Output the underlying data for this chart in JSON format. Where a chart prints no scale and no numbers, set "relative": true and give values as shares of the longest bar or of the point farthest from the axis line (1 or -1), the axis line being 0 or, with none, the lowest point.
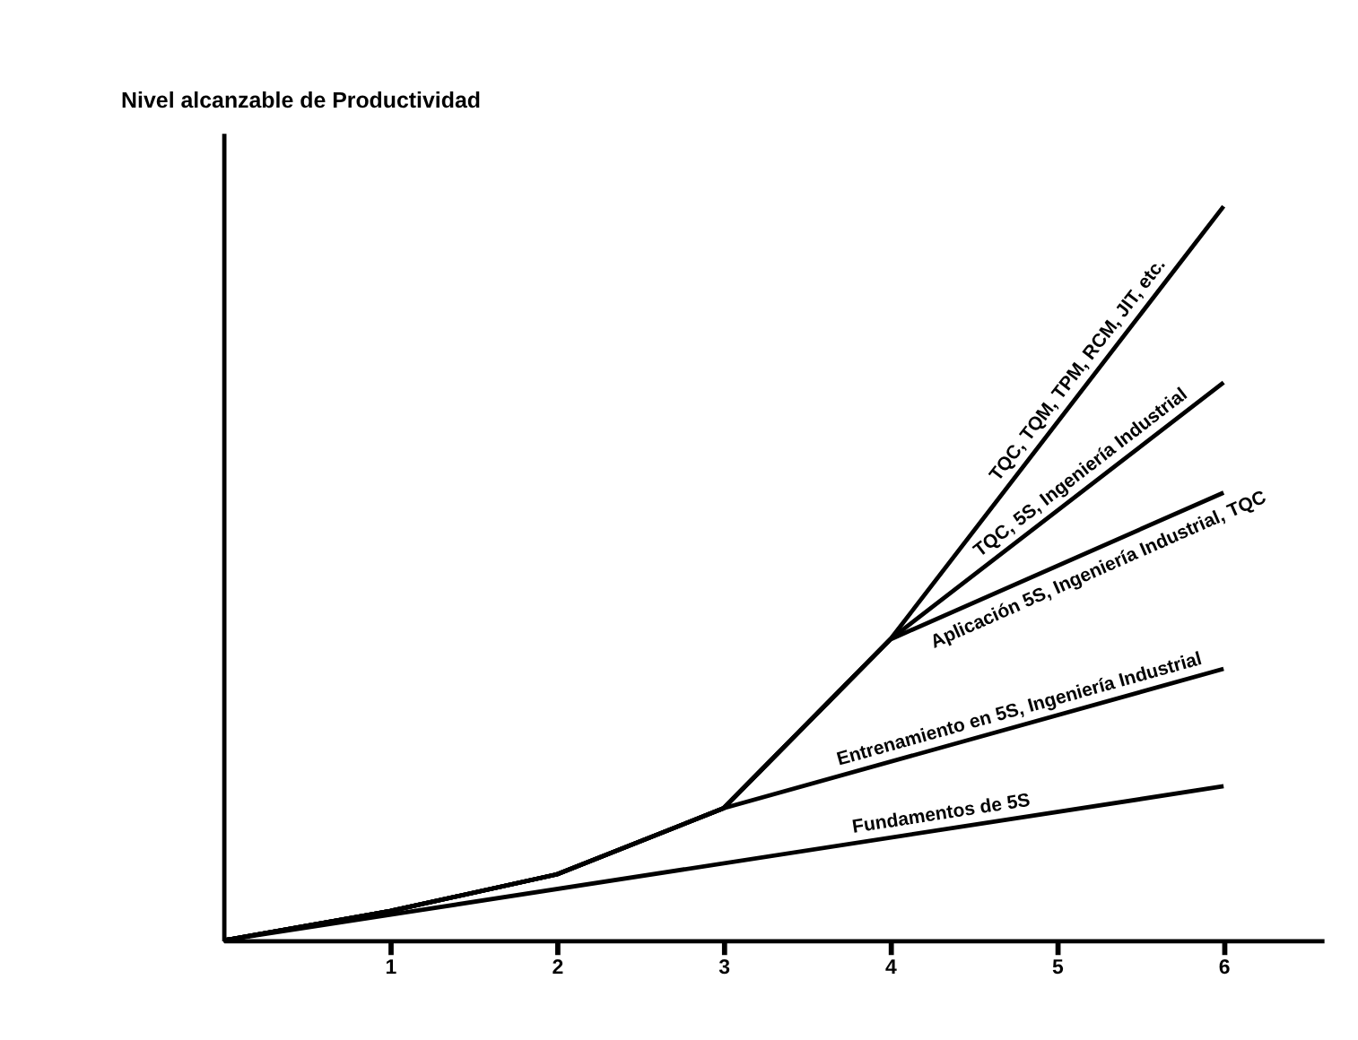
{
  "chart_data": {
    "type": "line",
    "ylabel": "Nivel alcanzable de Productividad",
    "relative": true,
    "xlim": [
      0,
      6.6
    ],
    "xticks": [
      1,
      2,
      3,
      4,
      5,
      6
    ],
    "grid": false,
    "legend": false,
    "marker": "none",
    "line_style": "solid",
    "series": [
      {
        "name": "Fundamentos de 5S",
        "color": "#000000",
        "x": [
          0,
          6
        ],
        "values": [
          0,
          0.21
        ]
      },
      {
        "name": "Entrenamiento en 5S, Ingeniería Industrial",
        "color": "#000000",
        "x": [
          0,
          1,
          2,
          3,
          6
        ],
        "values": [
          0,
          0.04,
          0.09,
          0.18,
          0.37
        ]
      },
      {
        "name": "Aplicación 5S, Ingeniería Industrial, TQC",
        "color": "#000000",
        "x": [
          0,
          1,
          2,
          3,
          4,
          6
        ],
        "values": [
          0,
          0.04,
          0.09,
          0.18,
          0.41,
          0.61
        ]
      },
      {
        "name": "TQC, 5S, Ingeniería Industrial",
        "color": "#000000",
        "x": [
          0,
          1,
          2,
          3,
          4,
          6
        ],
        "values": [
          0,
          0.04,
          0.09,
          0.18,
          0.41,
          0.76
        ]
      },
      {
        "name": "TQC, TQM, TPM, RCM, JIT, etc.",
        "color": "#000000",
        "x": [
          0,
          1,
          2,
          3,
          4,
          6
        ],
        "values": [
          0,
          0.04,
          0.09,
          0.18,
          0.41,
          1.0
        ]
      }
    ]
  }
}
